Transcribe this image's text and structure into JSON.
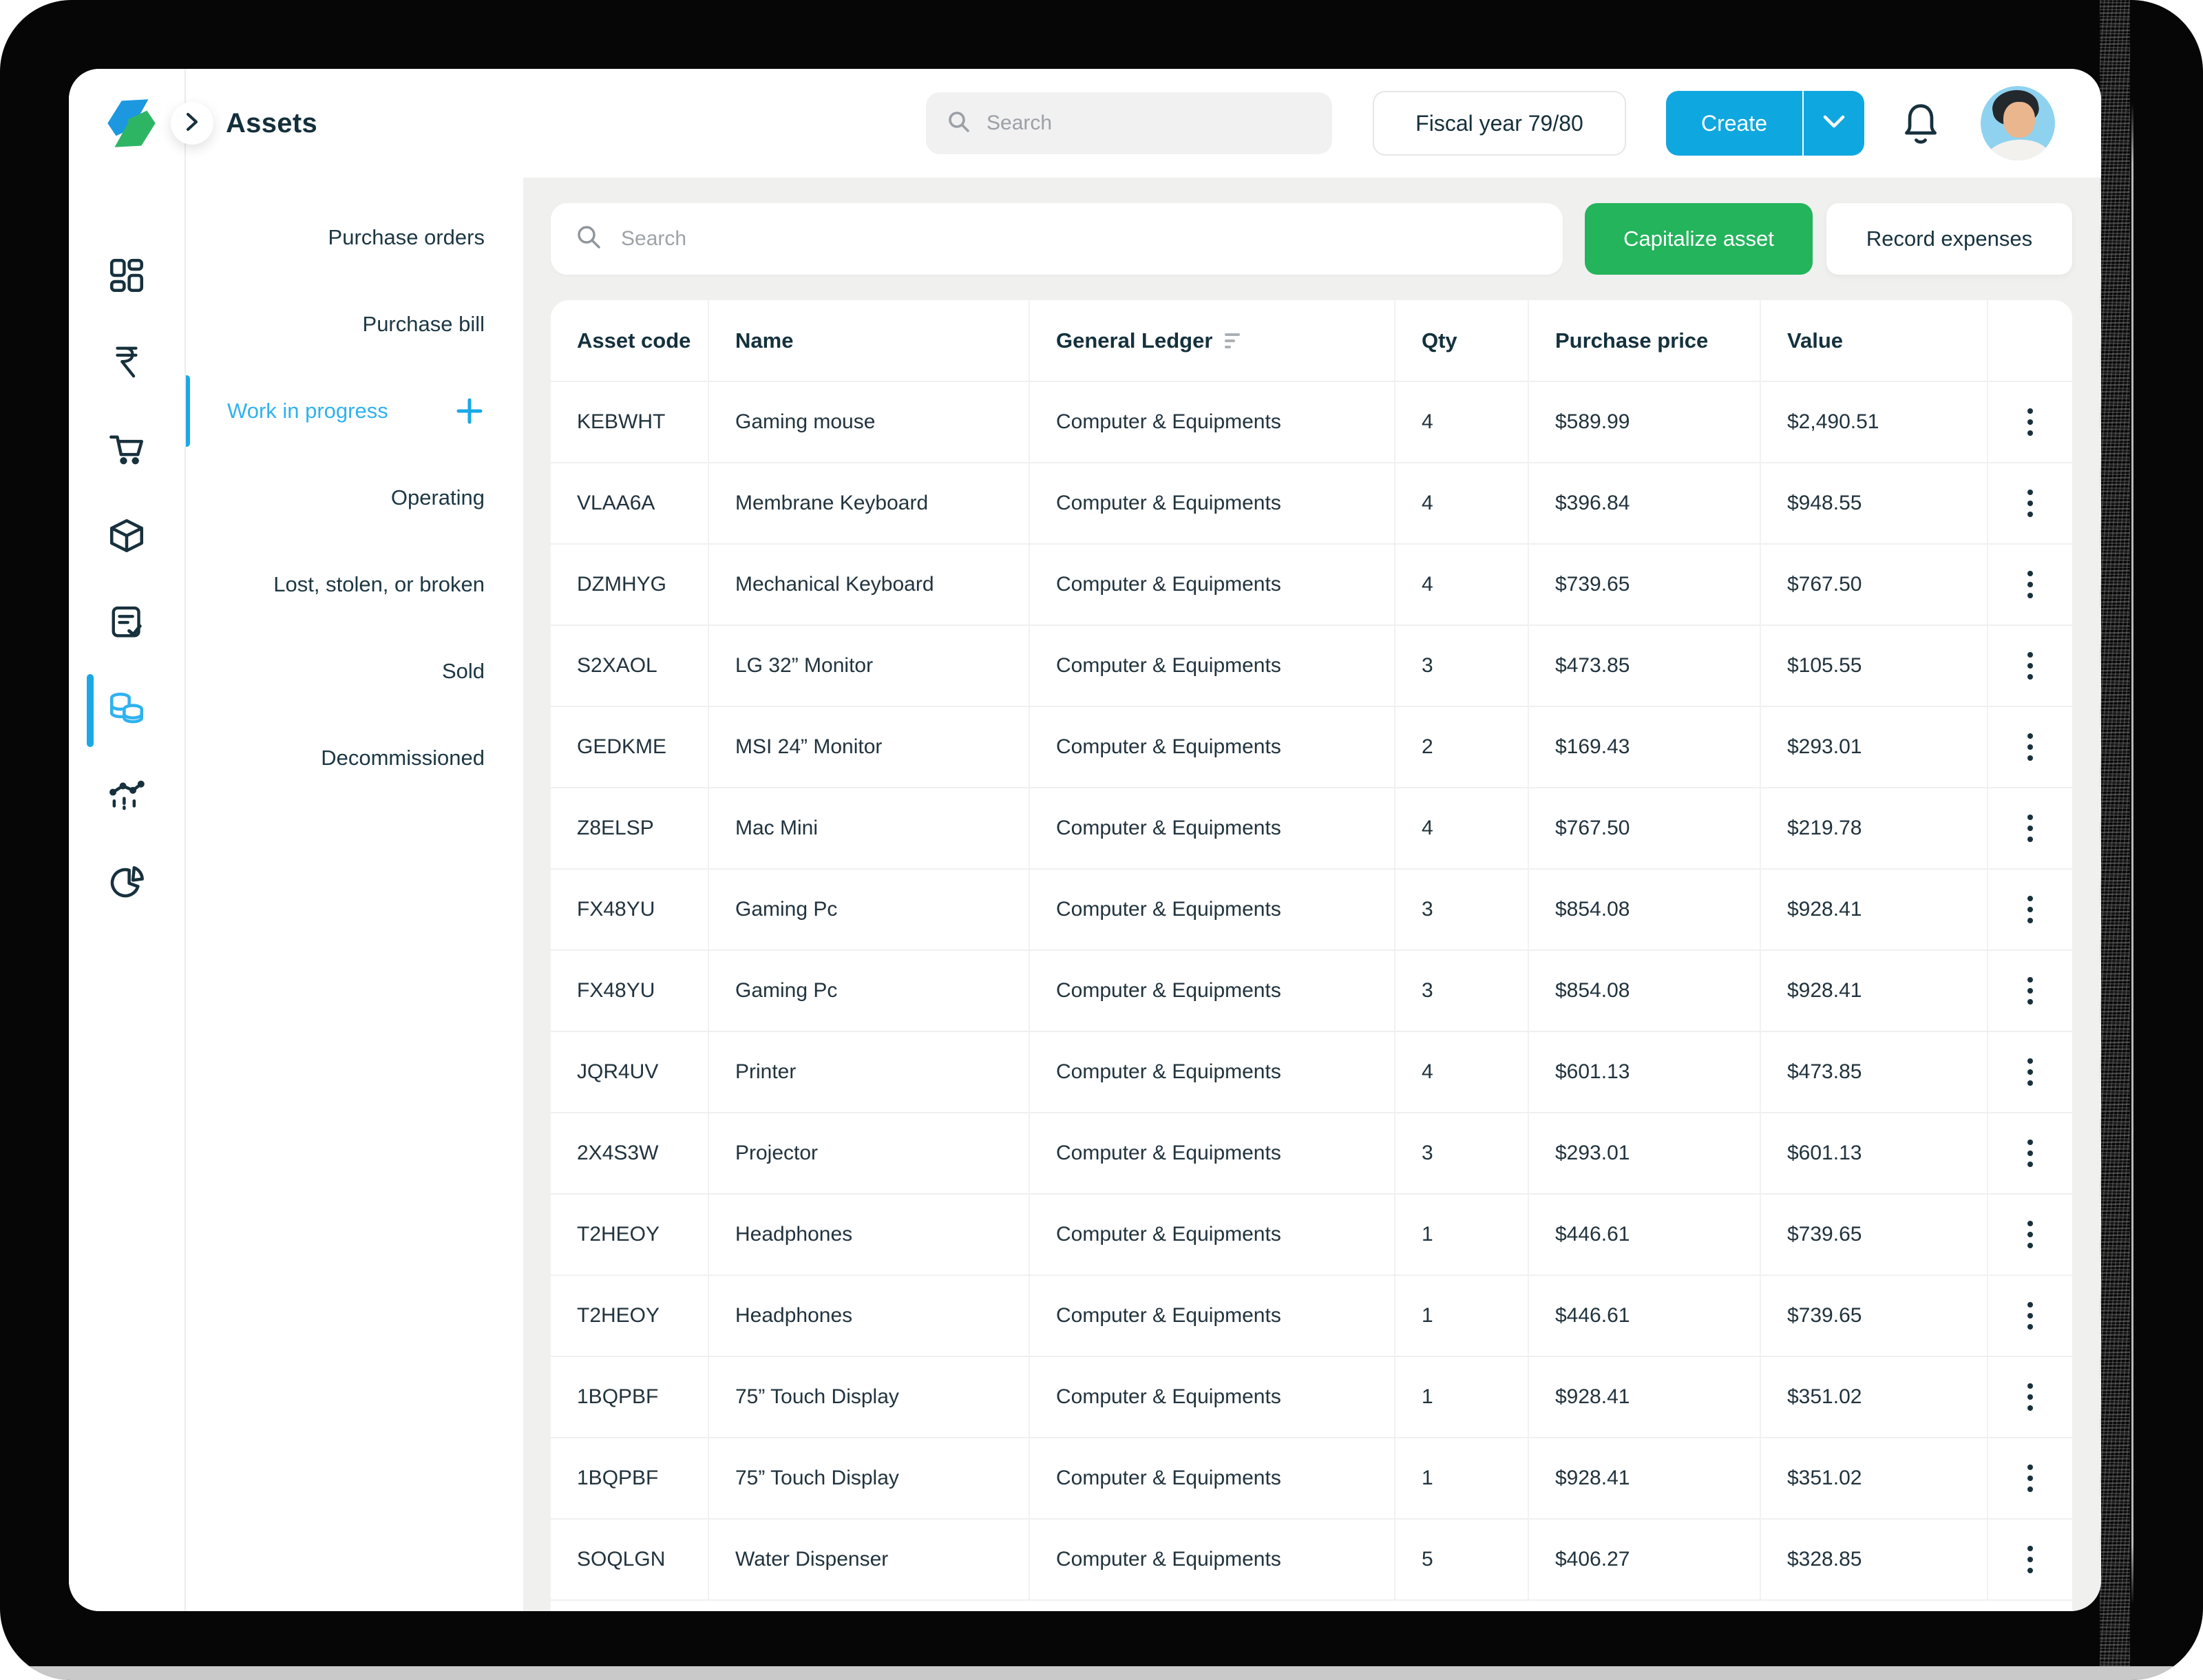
{
  "topbar": {
    "title": "Assets",
    "search_placeholder": "Search",
    "fiscal_year_label": "Fiscal year 79/80",
    "create_label": "Create"
  },
  "icon_rail": {
    "items": [
      {
        "icon": "dashboard-icon",
        "active": false
      },
      {
        "icon": "rupee-icon",
        "active": false
      },
      {
        "icon": "cart-icon",
        "active": false
      },
      {
        "icon": "package-icon",
        "active": false
      },
      {
        "icon": "invoice-icon",
        "active": false
      },
      {
        "icon": "assets-coins-icon",
        "active": true
      },
      {
        "icon": "analytics-icon",
        "active": false
      },
      {
        "icon": "pie-chart-icon",
        "active": false
      }
    ]
  },
  "sidebar": {
    "items": [
      {
        "label": "Purchase orders",
        "active": false,
        "has_add_button": false
      },
      {
        "label": "Purchase bill",
        "active": false,
        "has_add_button": false
      },
      {
        "label": "Work in progress",
        "active": true,
        "has_add_button": true
      },
      {
        "label": "Operating",
        "active": false,
        "has_add_button": false
      },
      {
        "label": "Lost, stolen, or broken",
        "active": false,
        "has_add_button": false
      },
      {
        "label": "Sold",
        "active": false,
        "has_add_button": false
      },
      {
        "label": "Decommissioned",
        "active": false,
        "has_add_button": false
      }
    ]
  },
  "toolbar": {
    "search_placeholder": "Search",
    "capitalize_button": "Capitalize asset",
    "record_button": "Record expenses"
  },
  "table": {
    "columns": [
      "Asset code",
      "Name",
      "General Ledger",
      "Qty",
      "Purchase price",
      "Value"
    ],
    "rows": [
      {
        "code": "KEBWHT",
        "name": "Gaming mouse",
        "ledger": "Computer & Equipments",
        "qty": "4",
        "price": "$589.99",
        "value": "$2,490.51"
      },
      {
        "code": "VLAA6A",
        "name": "Membrane Keyboard",
        "ledger": "Computer & Equipments",
        "qty": "4",
        "price": "$396.84",
        "value": "$948.55"
      },
      {
        "code": "DZMHYG",
        "name": "Mechanical Keyboard",
        "ledger": "Computer & Equipments",
        "qty": "4",
        "price": "$739.65",
        "value": "$767.50"
      },
      {
        "code": "S2XAOL",
        "name": "LG 32” Monitor",
        "ledger": "Computer & Equipments",
        "qty": "3",
        "price": "$473.85",
        "value": "$105.55"
      },
      {
        "code": "GEDKME",
        "name": "MSI 24” Monitor",
        "ledger": "Computer & Equipments",
        "qty": "2",
        "price": "$169.43",
        "value": "$293.01"
      },
      {
        "code": "Z8ELSP",
        "name": "Mac Mini",
        "ledger": "Computer & Equipments",
        "qty": "4",
        "price": "$767.50",
        "value": "$219.78"
      },
      {
        "code": "FX48YU",
        "name": "Gaming Pc",
        "ledger": "Computer & Equipments",
        "qty": "3",
        "price": "$854.08",
        "value": "$928.41"
      },
      {
        "code": "FX48YU",
        "name": "Gaming Pc",
        "ledger": "Computer & Equipments",
        "qty": "3",
        "price": "$854.08",
        "value": "$928.41"
      },
      {
        "code": "JQR4UV",
        "name": "Printer",
        "ledger": "Computer & Equipments",
        "qty": "4",
        "price": "$601.13",
        "value": "$473.85"
      },
      {
        "code": "2X4S3W",
        "name": "Projector",
        "ledger": "Computer & Equipments",
        "qty": "3",
        "price": "$293.01",
        "value": "$601.13"
      },
      {
        "code": "T2HEOY",
        "name": "Headphones",
        "ledger": "Computer & Equipments",
        "qty": "1",
        "price": "$446.61",
        "value": "$739.65"
      },
      {
        "code": "T2HEOY",
        "name": "Headphones",
        "ledger": "Computer & Equipments",
        "qty": "1",
        "price": "$446.61",
        "value": "$739.65"
      },
      {
        "code": "1BQPBF",
        "name": "75” Touch Display",
        "ledger": "Computer & Equipments",
        "qty": "1",
        "price": "$928.41",
        "value": "$351.02"
      },
      {
        "code": "1BQPBF",
        "name": "75” Touch Display",
        "ledger": "Computer & Equipments",
        "qty": "1",
        "price": "$928.41",
        "value": "$351.02"
      },
      {
        "code": "SOQLGN",
        "name": "Water Dispenser",
        "ledger": "Computer & Equipments",
        "qty": "5",
        "price": "$406.27",
        "value": "$328.85"
      }
    ]
  },
  "colors": {
    "accent_blue": "#0FA7DF",
    "light_blue": "#2FB2EF",
    "bar_blue": "#1BA9E6",
    "green": "#24B45C",
    "logo_blue": "#1B98E0",
    "logo_green": "#2EB564",
    "dark_navy": "#17313D"
  }
}
